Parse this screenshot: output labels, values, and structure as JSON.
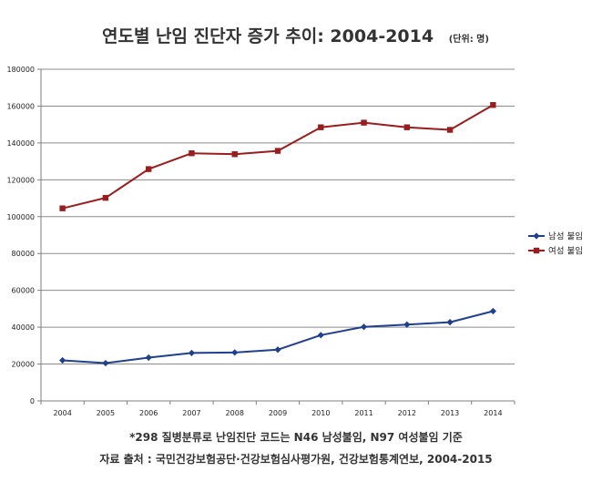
{
  "chart_data": {
    "type": "line",
    "title": "연도별 난임 진단자 증가 추이: 2004-2014",
    "unit_label": "(단위: 명)",
    "x": [
      "2004",
      "2005",
      "2006",
      "2007",
      "2008",
      "2009",
      "2010",
      "2011",
      "2012",
      "2013",
      "2014"
    ],
    "ylim": [
      0,
      180000
    ],
    "yticks": [
      0,
      20000,
      40000,
      60000,
      80000,
      100000,
      120000,
      140000,
      160000,
      180000
    ],
    "grid": true,
    "legend_position": "right",
    "series": [
      {
        "name": "남성 불임",
        "color": "#1f3f8f",
        "marker": "diamond",
        "values": [
          22000,
          20500,
          23500,
          26000,
          26300,
          27800,
          35700,
          40200,
          41400,
          42700,
          48700
        ]
      },
      {
        "name": "여성 불임",
        "color": "#9b1c1c",
        "marker": "square",
        "values": [
          104500,
          110200,
          125800,
          134400,
          133900,
          135700,
          148500,
          151000,
          148500,
          147100,
          160600
        ]
      }
    ],
    "footnote": "*298 질병분류로 난임진단 코드는 N46 남성불임, N97 여성불임 기준",
    "source": "자료 출처 : 국민건강보험공단·건강보험심사평가원, 건강보험통계연보, 2004-2015"
  }
}
